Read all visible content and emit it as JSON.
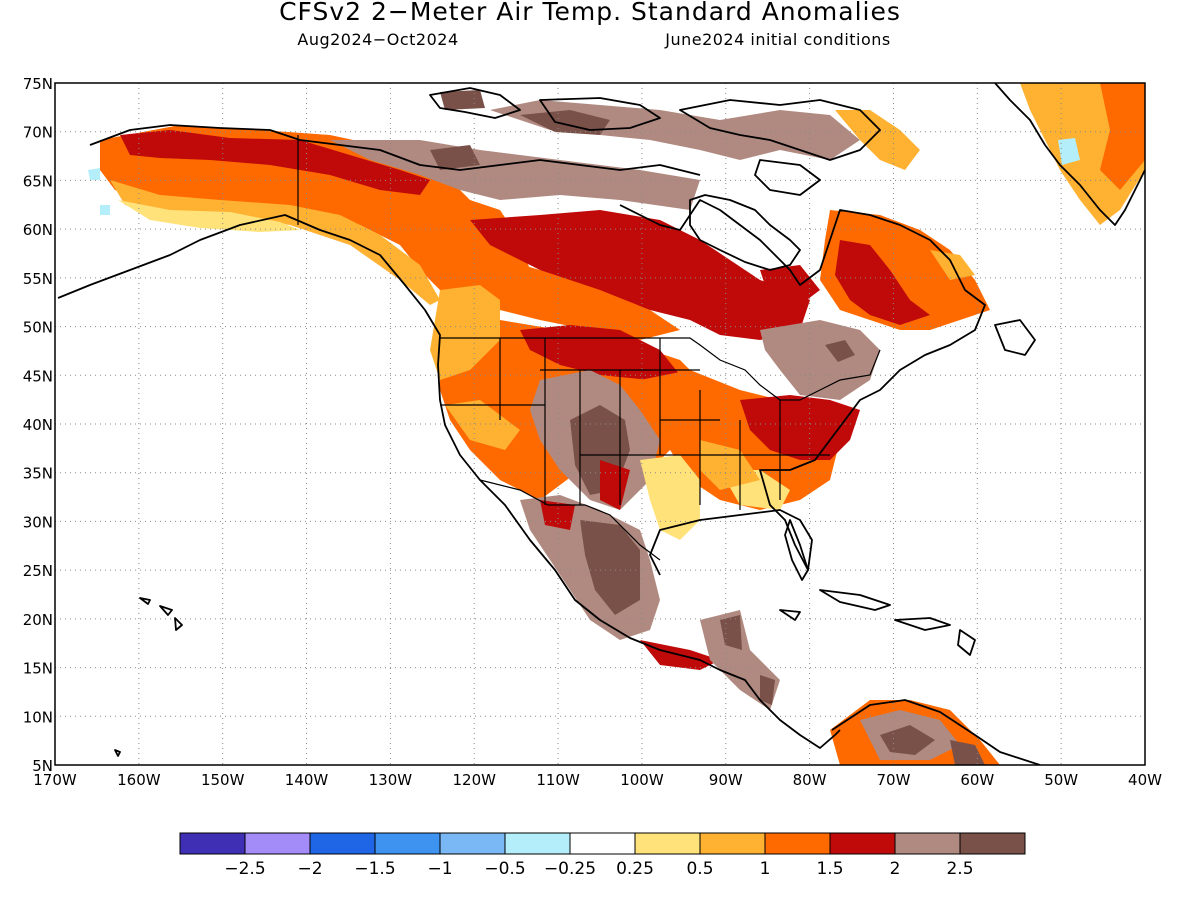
{
  "title": "CFSv2 2−Meter Air Temp. Standard Anomalies",
  "valid_period": "Aug2024−Oct2024",
  "initial_conditions": "June2024 initial conditions",
  "map": {
    "lon_min": -170,
    "lon_max": -40,
    "lat_min": 5,
    "lat_max": 75,
    "lat_ticks": [
      {
        "value": 75,
        "label": "75N"
      },
      {
        "value": 70,
        "label": "70N"
      },
      {
        "value": 65,
        "label": "65N"
      },
      {
        "value": 60,
        "label": "60N"
      },
      {
        "value": 55,
        "label": "55N"
      },
      {
        "value": 50,
        "label": "50N"
      },
      {
        "value": 45,
        "label": "45N"
      },
      {
        "value": 40,
        "label": "40N"
      },
      {
        "value": 35,
        "label": "35N"
      },
      {
        "value": 30,
        "label": "30N"
      },
      {
        "value": 25,
        "label": "25N"
      },
      {
        "value": 20,
        "label": "20N"
      },
      {
        "value": 15,
        "label": "15N"
      },
      {
        "value": 10,
        "label": "10N"
      },
      {
        "value": 5,
        "label": "5N"
      }
    ],
    "lon_ticks": [
      {
        "value": -170,
        "label": "170W"
      },
      {
        "value": -160,
        "label": "160W"
      },
      {
        "value": -150,
        "label": "150W"
      },
      {
        "value": -140,
        "label": "140W"
      },
      {
        "value": -130,
        "label": "130W"
      },
      {
        "value": -120,
        "label": "120W"
      },
      {
        "value": -110,
        "label": "110W"
      },
      {
        "value": -100,
        "label": "100W"
      },
      {
        "value": -90,
        "label": "90W"
      },
      {
        "value": -80,
        "label": "80W"
      },
      {
        "value": -70,
        "label": "70W"
      },
      {
        "value": -60,
        "label": "60W"
      },
      {
        "value": -50,
        "label": "50W"
      },
      {
        "value": -40,
        "label": "40W"
      }
    ],
    "grid": true
  },
  "legend": {
    "colors": [
      "#3f2fb4",
      "#a38cf7",
      "#1f66e6",
      "#3f93f0",
      "#7ab7f5",
      "#b4eefa",
      "#ffffff",
      "#ffe27a",
      "#ffb132",
      "#ff6a00",
      "#c00a0a",
      "#b08a80",
      "#7a5148"
    ],
    "labels": [
      "−2.5",
      "−2",
      "−1.5",
      "−1",
      "−0.5",
      "−0.25",
      "0.25",
      "0.5",
      "1",
      "1.5",
      "2",
      "2.5"
    ]
  },
  "anomaly_fields": [
    {
      "level": "0.25 to 0.5",
      "color": "#ffe27a",
      "areas": [
        "north alaska",
        "texas",
        "southeast",
        "greenland east"
      ]
    },
    {
      "level": "0.5 to 1",
      "color": "#ffb132",
      "areas": [
        "alaska interior",
        "pacific northwest",
        "great lakes region",
        "greenland"
      ]
    },
    {
      "level": "1 to 1.5",
      "color": "#ff6a00",
      "areas": [
        "western canada",
        "west us",
        "midwest",
        "eastern canada",
        "venezuela coast"
      ]
    },
    {
      "level": "1.5 to 2",
      "color": "#c00a0a",
      "areas": [
        "northern alaska coast",
        "central canada",
        "ohio valley",
        "quebec"
      ]
    },
    {
      "level": "2 to 2.5",
      "color": "#b08a80",
      "areas": [
        "yukon",
        "arctic islands",
        "northern rockies",
        "mexico",
        "ontario"
      ]
    },
    {
      "level": "greater than 2.5",
      "color": "#7a5148",
      "areas": [
        "southern rockies",
        "northern mexico",
        "canadian arctic",
        "central america"
      ]
    },
    {
      "level": "below -0.25",
      "color": "#b4eefa",
      "areas": [
        "western alaska coast",
        "greenland southeast"
      ]
    }
  ]
}
